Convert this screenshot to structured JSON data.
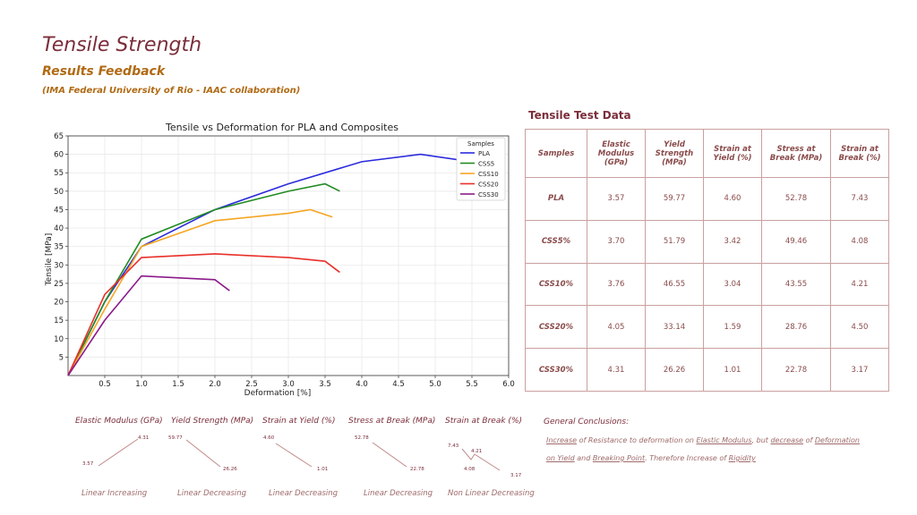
{
  "header": {
    "title": "Tensile Strength",
    "subtitle": "Results Feedback",
    "affiliation": "(IMA Federal University of Rio - IAAC collaboration)"
  },
  "chart_data": {
    "type": "line",
    "title": "Tensile vs Deformation for PLA and Composites",
    "xlabel": "Deformation [%]",
    "ylabel": "Tensile [MPa]",
    "xlim": [
      0,
      6.0
    ],
    "ylim": [
      0,
      65
    ],
    "xticks": [
      "0.5",
      "1.0",
      "1.5",
      "2.0",
      "2.5",
      "3.0",
      "3.5",
      "4.0",
      "4.5",
      "5.0",
      "5.5",
      "6.0"
    ],
    "yticks": [
      "5",
      "10",
      "15",
      "20",
      "25",
      "30",
      "35",
      "40",
      "45",
      "50",
      "55",
      "60",
      "65"
    ],
    "grid": true,
    "legend_title": "Samples",
    "legend_position": "top-right",
    "series": [
      {
        "name": "PLA",
        "color": "#2b2bdc",
        "points": [
          [
            0,
            0
          ],
          [
            0.5,
            20
          ],
          [
            1.0,
            35
          ],
          [
            2.0,
            45
          ],
          [
            3.0,
            52
          ],
          [
            4.0,
            58
          ],
          [
            4.8,
            60
          ],
          [
            5.5,
            58
          ],
          [
            5.7,
            56
          ]
        ]
      },
      {
        "name": "CSS5",
        "color": "#228b22",
        "points": [
          [
            0,
            0
          ],
          [
            0.5,
            20
          ],
          [
            1.0,
            37
          ],
          [
            2.0,
            45
          ],
          [
            3.0,
            50
          ],
          [
            3.5,
            52
          ],
          [
            3.7,
            50
          ]
        ]
      },
      {
        "name": "CSS10",
        "color": "#f5a623",
        "points": [
          [
            0,
            0
          ],
          [
            0.5,
            18
          ],
          [
            1.0,
            35
          ],
          [
            2.0,
            42
          ],
          [
            3.0,
            44
          ],
          [
            3.3,
            45
          ],
          [
            3.6,
            43
          ]
        ]
      },
      {
        "name": "CSS20",
        "color": "#e8302a",
        "points": [
          [
            0,
            0
          ],
          [
            0.5,
            22
          ],
          [
            1.0,
            32
          ],
          [
            2.0,
            33
          ],
          [
            3.0,
            32
          ],
          [
            3.5,
            31
          ],
          [
            3.7,
            28
          ]
        ]
      },
      {
        "name": "CSS30",
        "color": "#8b1a8b",
        "points": [
          [
            0,
            0
          ],
          [
            0.5,
            15
          ],
          [
            1.0,
            27
          ],
          [
            2.0,
            26
          ],
          [
            2.2,
            23
          ]
        ]
      }
    ]
  },
  "table": {
    "title": "Tensile Test Data",
    "headers": [
      "Samples",
      "Elastic Modulus (GPa)",
      "Yield Strength (MPa)",
      "Strain at Yield (%)",
      "Stress at Break (MPa)",
      "Strain at Break (%)"
    ],
    "rows": [
      [
        "PLA",
        "3.57",
        "59.77",
        "4.60",
        "52.78",
        "7.43"
      ],
      [
        "CSS5%",
        "3.70",
        "51.79",
        "3.42",
        "49.46",
        "4.08"
      ],
      [
        "CSS10%",
        "3.76",
        "46.55",
        "3.04",
        "43.55",
        "4.21"
      ],
      [
        "CSS20%",
        "4.05",
        "33.14",
        "1.59",
        "28.76",
        "4.50"
      ],
      [
        "CSS30%",
        "4.31",
        "26.26",
        "1.01",
        "22.78",
        "3.17"
      ]
    ]
  },
  "mini_charts": [
    {
      "title": "Elastic Modulus (GPa)",
      "first": "3.57",
      "last": "4.31",
      "footer": "Linear Increasing"
    },
    {
      "title": "Yield Strength (MPa)",
      "first": "59.77",
      "last": "26.26",
      "footer": "Linear Decreasing"
    },
    {
      "title": "Strain at Yield (%)",
      "first": "4.60",
      "last": "1.01",
      "footer": "Linear Decreasing"
    },
    {
      "title": "Stress at Break (MPa)",
      "first": "52.78",
      "last": "22.78",
      "footer": "Linear Decreasing"
    },
    {
      "title": "Strain at Break (%)",
      "first": "7.43",
      "mid1": "4.08",
      "mid2": "4.21",
      "last": "3.17",
      "footer": "Non Linear Decreasing"
    }
  ],
  "conclusions": {
    "title": "General Conclusions:",
    "t1": "Increase",
    "t2": " of Resistance to deformation on ",
    "t3": "Elastic Modulus",
    "t4": ", but ",
    "t5": "decrease",
    "t6": " of ",
    "t7": "Deformation on Yield",
    "t8": " and ",
    "t9": "Breaking Point",
    "t10": ". Therefore Increase of ",
    "t11": "Rigidity"
  }
}
